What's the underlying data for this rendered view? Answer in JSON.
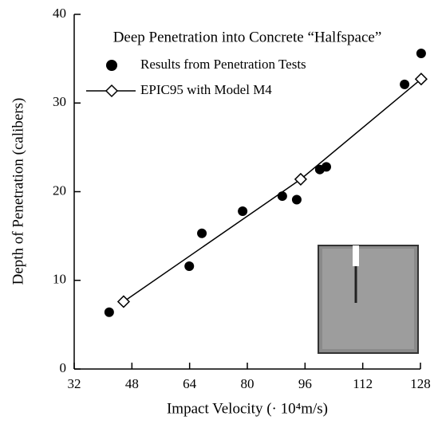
{
  "chart_data": {
    "type": "scatter",
    "title": "Deep Penetration into Concrete “Halfspace”",
    "x_label": "Impact Velocity (· 10⁴m/s)",
    "y_label": "Depth of Penetration (calibers)",
    "xlim": [
      32,
      128
    ],
    "xticks": [
      32,
      48,
      64,
      80,
      96,
      112,
      128
    ],
    "ylim": [
      0,
      40
    ],
    "yticks": [
      0,
      10,
      20,
      30,
      40
    ],
    "series": [
      {
        "name": "Results from Penetration Tests",
        "marker": "circle",
        "color": "#000000",
        "x": [
          41.7,
          63.9,
          67.4,
          78.7,
          89.7,
          93.7,
          100.1,
          101.9,
          123.6,
          128.2
        ],
        "values": [
          6.4,
          11.6,
          15.3,
          17.8,
          19.5,
          19.1,
          22.5,
          22.8,
          32.1,
          35.6
        ]
      },
      {
        "name": "EPIC95 with Model M4",
        "marker": "diamond-line",
        "color": "#000000",
        "x": [
          45.7,
          94.8,
          128.2
        ],
        "values": [
          7.6,
          21.4,
          32.7
        ]
      }
    ]
  }
}
